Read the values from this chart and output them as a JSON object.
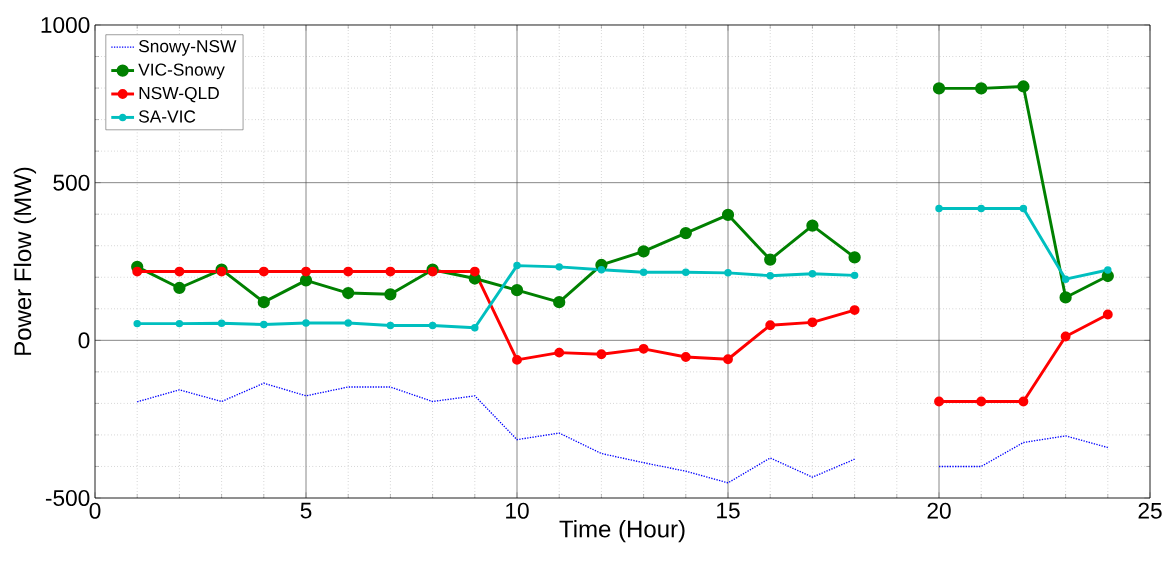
{
  "chart_data": {
    "type": "line",
    "xlabel": "Time (Hour)",
    "ylabel": "Power Flow (MW)",
    "x": [
      1,
      2,
      3,
      4,
      5,
      6,
      7,
      8,
      9,
      10,
      11,
      12,
      13,
      14,
      15,
      16,
      17,
      18,
      19,
      20,
      21,
      22,
      23,
      24
    ],
    "xlim": [
      0,
      25
    ],
    "xticks": [
      0,
      5,
      10,
      15,
      20,
      25
    ],
    "ylim": [
      -500,
      1000
    ],
    "yticks": [
      -500,
      0,
      500,
      1000
    ],
    "grid": true,
    "legend": "top left",
    "series": [
      {
        "name": "Snowy-NSW",
        "color": "#0000ff",
        "marker": "none",
        "line_style": "dotted",
        "values": [
          -195,
          -157,
          -194,
          -136,
          -176,
          -148,
          -148,
          -194,
          -176,
          -315,
          -294,
          -359,
          -388,
          -415,
          -452,
          -373,
          -434,
          -377,
          null,
          -400,
          -400,
          -324,
          -303,
          -340
        ]
      },
      {
        "name": "VIC-Snowy",
        "color": "#008000",
        "marker": "circle",
        "line_style": "solid",
        "values": [
          233,
          166,
          224,
          121,
          190,
          150,
          146,
          224,
          196,
          159,
          121,
          239,
          282,
          340,
          398,
          256,
          364,
          263,
          null,
          799,
          799,
          805,
          136,
          204
        ]
      },
      {
        "name": "NSW-QLD",
        "color": "#ff0000",
        "marker": "circle",
        "line_style": "solid",
        "values": [
          218,
          218,
          218,
          218,
          218,
          218,
          218,
          218,
          218,
          -62,
          -39,
          -44,
          -27,
          -53,
          -60,
          48,
          57,
          96,
          null,
          -194,
          -194,
          -194,
          12,
          82
        ]
      },
      {
        "name": "SA-VIC",
        "color": "#00bfbf",
        "marker": "circle",
        "line_style": "solid",
        "values": [
          53,
          53,
          54,
          50,
          55,
          55,
          47,
          47,
          40,
          237,
          233,
          224,
          216,
          216,
          214,
          205,
          211,
          206,
          null,
          418,
          418,
          418,
          194,
          223
        ]
      }
    ]
  }
}
